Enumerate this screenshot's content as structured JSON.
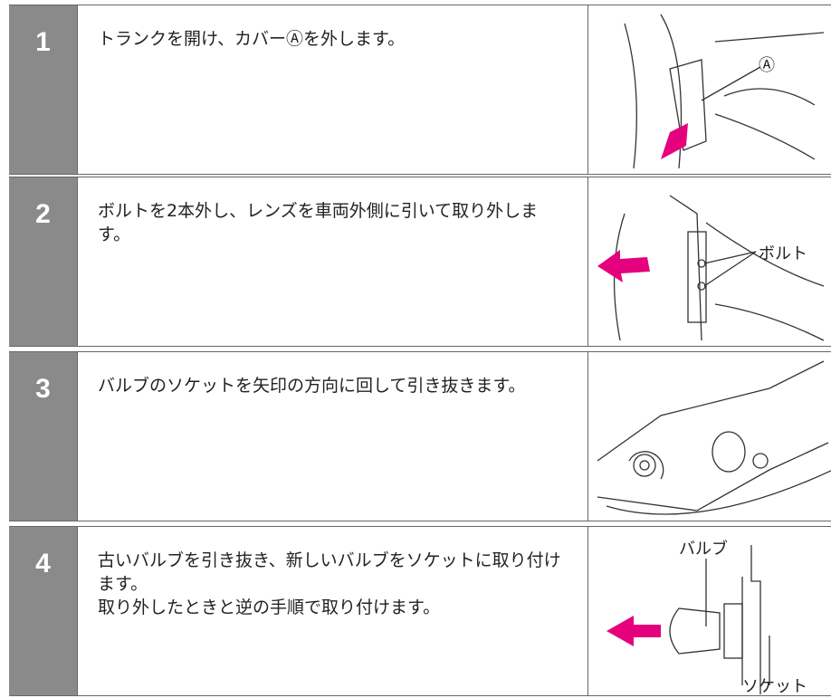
{
  "steps": [
    {
      "number": "1",
      "paragraphs": [
        "トランクを開け、カバーⒶを外します。"
      ],
      "labels": [
        "Ⓐ"
      ]
    },
    {
      "number": "2",
      "paragraphs": [
        "ボルトを2本外し、レンズを車両外側に引いて取り外します。"
      ],
      "labels": [
        "ボルト"
      ]
    },
    {
      "number": "3",
      "paragraphs": [
        "バルブのソケットを矢印の方向に回して引き抜きます。"
      ],
      "labels": []
    },
    {
      "number": "4",
      "paragraphs": [
        "古いバルブを引き抜き、新しいバルブをソケットに取り付けます。",
        "取り外したときと逆の手順で取り付けます。"
      ],
      "labels": [
        "バルブ",
        "ソケット"
      ]
    }
  ]
}
